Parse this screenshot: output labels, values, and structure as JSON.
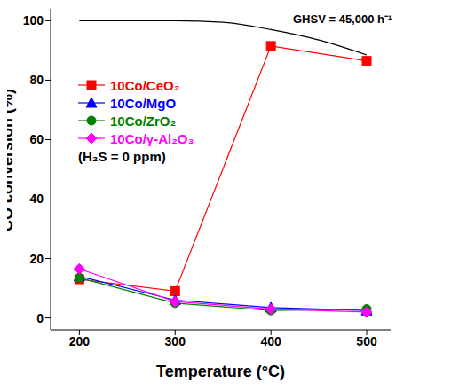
{
  "chart_data": {
    "type": "line",
    "x_label": "Temperature (°C)",
    "y_label": "CO conversion (%)",
    "xlim": [
      170,
      525
    ],
    "xticks": [
      200,
      300,
      400,
      500
    ],
    "ylim": [
      -4,
      104
    ],
    "yticks": [
      0,
      20,
      40,
      60,
      80,
      100
    ],
    "grid": false,
    "legend": "upper left",
    "annotations": [
      "GHSV = 45,000 h⁻¹",
      "(H₂S = 0 ppm)"
    ],
    "series": [
      {
        "name": "10Co/CeO₂",
        "color": "#ff0000",
        "marker": "square",
        "line_style": "solid",
        "x": [
          200,
          300,
          400,
          500
        ],
        "values": [
          13,
          9,
          91.5,
          86.5
        ]
      },
      {
        "name": "10Co/MgO",
        "color": "#0000ff",
        "marker": "triangle",
        "line_style": "solid",
        "x": [
          200,
          300,
          400,
          500
        ],
        "values": [
          14,
          6,
          3.5,
          2.5
        ]
      },
      {
        "name": "10Co/ZrO₂",
        "color": "#008000",
        "marker": "circle",
        "line_style": "solid",
        "x": [
          200,
          300,
          400,
          500
        ],
        "values": [
          13.5,
          5,
          2.5,
          3
        ]
      },
      {
        "name": "10Co/γ-Al₂O₃",
        "color": "#ff00ff",
        "marker": "diamond",
        "line_style": "solid",
        "x": [
          200,
          300,
          400,
          500
        ],
        "values": [
          16.5,
          5.5,
          3,
          2
        ]
      },
      {
        "color": "#000000",
        "marker": "none",
        "line_style": "solid",
        "x": [
          200,
          250,
          300,
          350,
          400,
          450,
          500
        ],
        "values": [
          100,
          100,
          100,
          99.5,
          97,
          93.5,
          88.5
        ]
      }
    ]
  }
}
